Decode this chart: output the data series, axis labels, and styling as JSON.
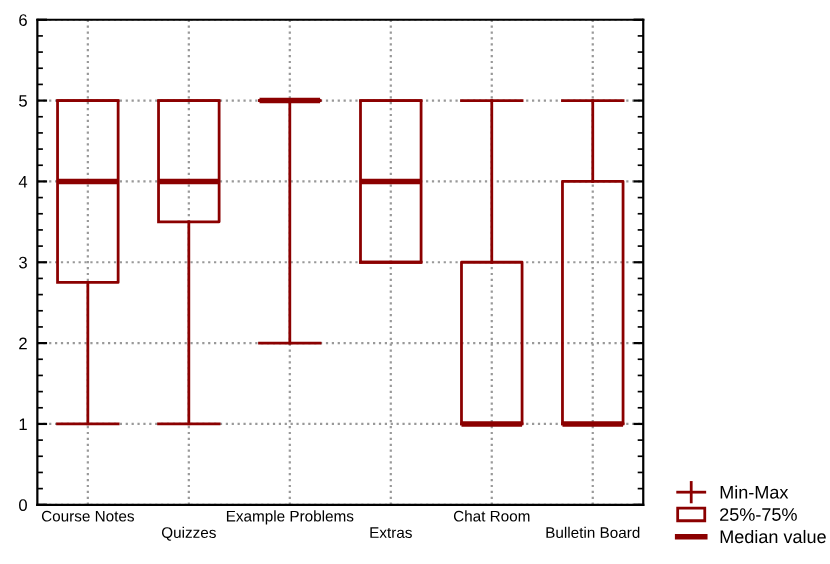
{
  "chart_data": {
    "type": "box",
    "categories": [
      "Course Notes",
      "Quizzes",
      "Example Problems",
      "Extras",
      "Chat Room",
      "Bulletin Board"
    ],
    "boxes": [
      {
        "low": 1,
        "q1": 2.75,
        "median": 4,
        "q3": 5,
        "high": 5
      },
      {
        "low": 1,
        "q1": 3.5,
        "median": 4,
        "q3": 5,
        "high": 5
      },
      {
        "low": 2,
        "q1": 5,
        "median": 5,
        "q3": 5,
        "high": 5
      },
      {
        "low": 3,
        "q1": 3,
        "median": 4,
        "q3": 5,
        "high": 5
      },
      {
        "low": 1,
        "q1": 1,
        "median": 1,
        "q3": 3,
        "high": 5
      },
      {
        "low": 1,
        "q1": 1,
        "median": 1,
        "q3": 4,
        "high": 5
      }
    ],
    "color": "#8b0000",
    "ylim": [
      0,
      6
    ],
    "yticks": [
      0,
      1,
      2,
      3,
      4,
      5,
      6
    ],
    "grid": true,
    "annotations": [
      "Min-Max",
      "25%-75%",
      "Median value"
    ]
  }
}
